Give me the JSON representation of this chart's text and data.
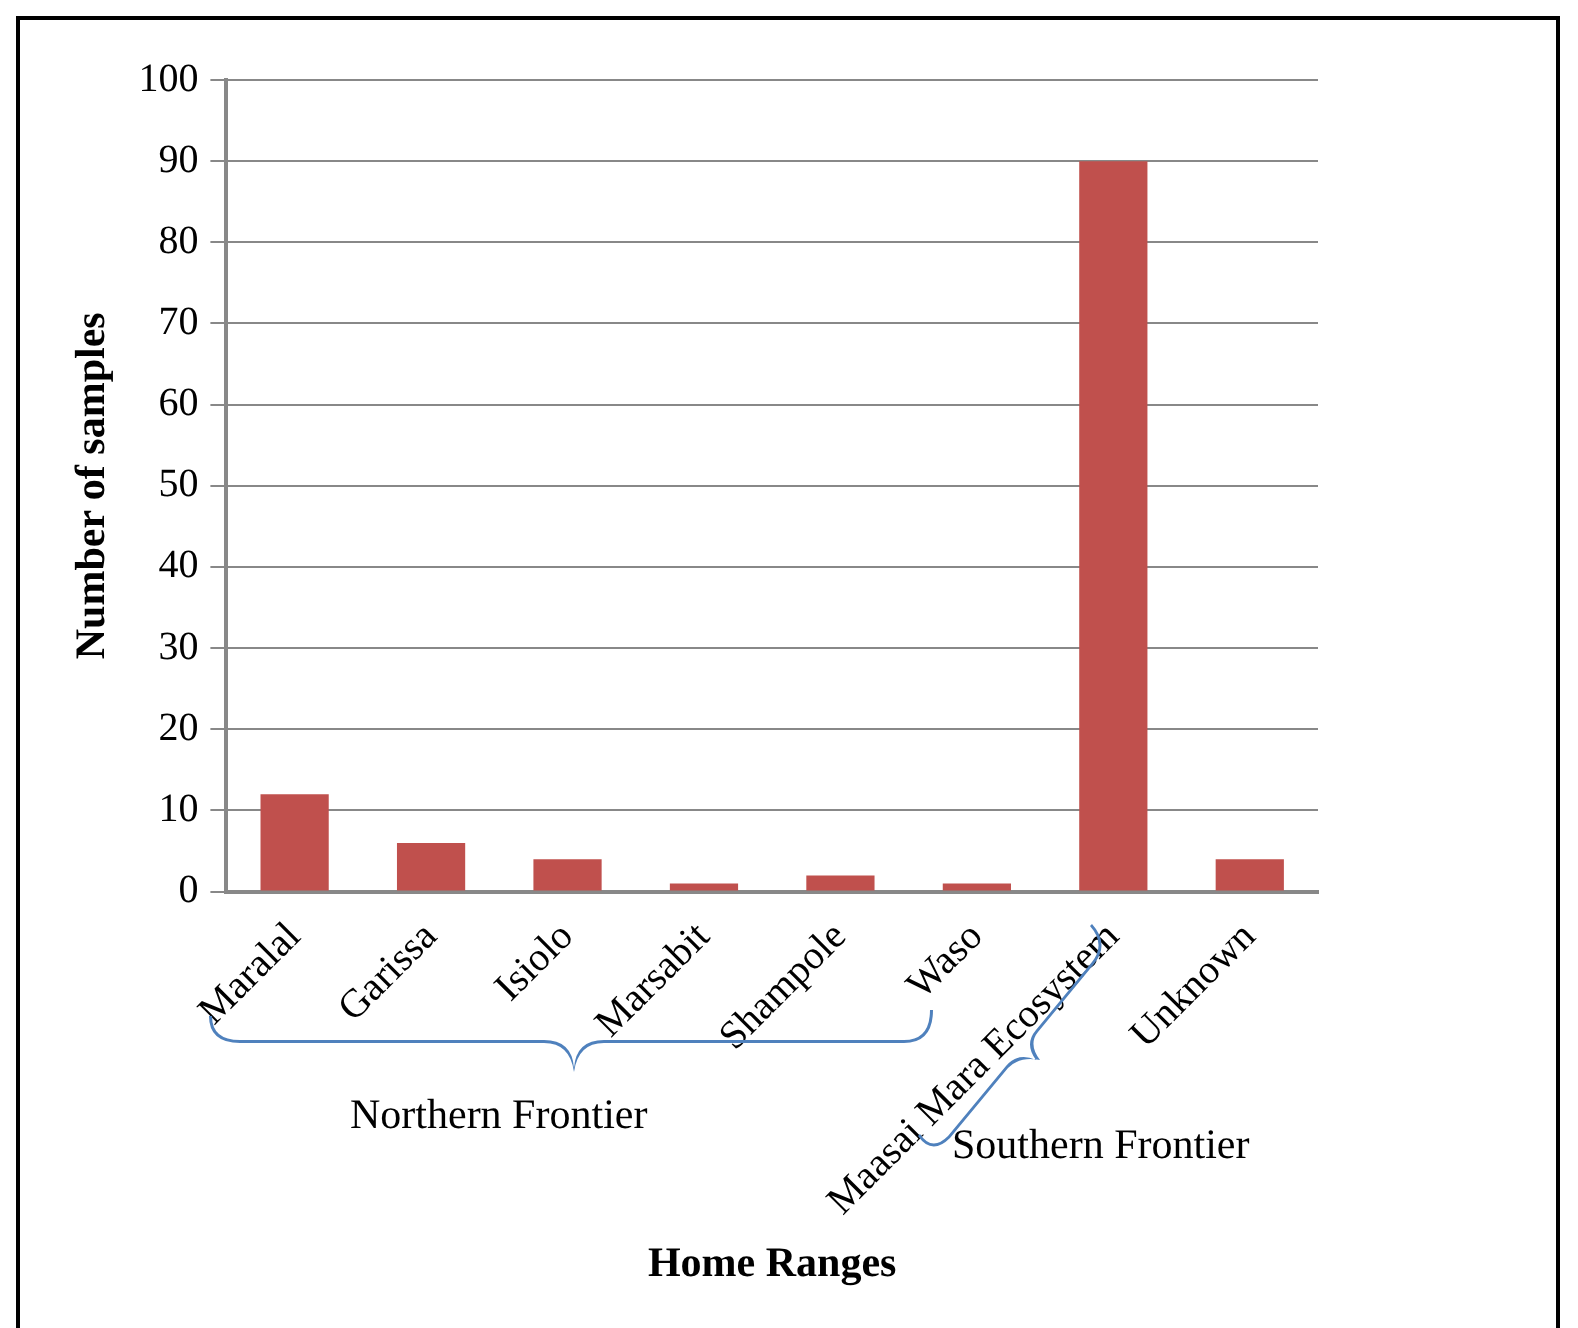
{
  "chart_data": {
    "type": "bar",
    "xlabel": "Home Ranges",
    "ylabel": "Number of samples",
    "categories": [
      "Maralal",
      "Garissa",
      "Isiolo",
      "Marsabit",
      "Shampole",
      "Waso",
      "Maasai Mara Ecosystem",
      "Unknown"
    ],
    "values": [
      12,
      6,
      4,
      1,
      2,
      1,
      90,
      4
    ],
    "color": "#c0504d",
    "ylim": [
      0,
      100
    ],
    "yticks": [
      0,
      10,
      20,
      30,
      40,
      50,
      60,
      70,
      80,
      90,
      100
    ],
    "grid": "y",
    "annotations": [
      "Northern Frontier",
      "Southern Frontier"
    ]
  }
}
